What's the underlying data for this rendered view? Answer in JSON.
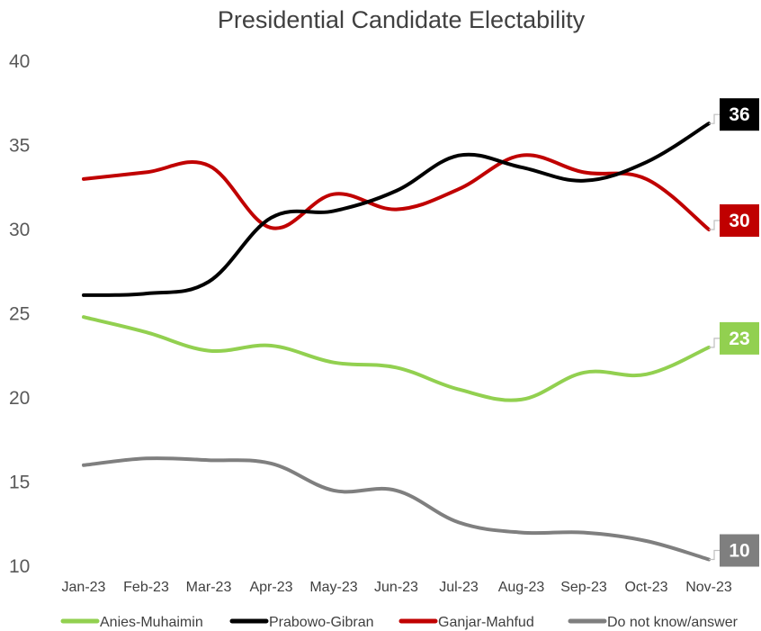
{
  "chart_data": {
    "type": "line",
    "title": "Presidential Candidate Electability",
    "categories": [
      "Jan-23",
      "Feb-23",
      "Mar-23",
      "Apr-23",
      "May-23",
      "Jun-23",
      "Jul-23",
      "Aug-23",
      "Sep-23",
      "Oct-23",
      "Nov-23"
    ],
    "ylim": [
      10,
      40
    ],
    "yticks": [
      "10",
      "15",
      "20",
      "25",
      "30",
      "35",
      "40"
    ],
    "legend_position": "bottom",
    "series": [
      {
        "name": "Anies-Muhaimin",
        "color": "#92d050",
        "values": [
          24.8,
          23.9,
          22.8,
          23.1,
          22.1,
          21.8,
          20.5,
          19.9,
          21.5,
          21.4,
          23.0
        ],
        "end_label": "23"
      },
      {
        "name": "Prabowo-Gibran",
        "color": "#000000",
        "values": [
          26.1,
          26.2,
          26.9,
          30.7,
          31.1,
          32.3,
          34.4,
          33.7,
          32.9,
          34.0,
          36.3
        ],
        "end_label": "36"
      },
      {
        "name": "Ganjar-Mahfud",
        "color": "#c00000",
        "values": [
          33.0,
          33.4,
          33.8,
          30.1,
          32.1,
          31.2,
          32.4,
          34.4,
          33.4,
          33.0,
          30.0
        ],
        "end_label": "30"
      },
      {
        "name": "Do not know/answer",
        "color": "#7f7f7f",
        "values": [
          16.0,
          16.4,
          16.3,
          16.1,
          14.5,
          14.5,
          12.6,
          12.0,
          12.0,
          11.5,
          10.4
        ],
        "end_label": "10"
      }
    ]
  }
}
